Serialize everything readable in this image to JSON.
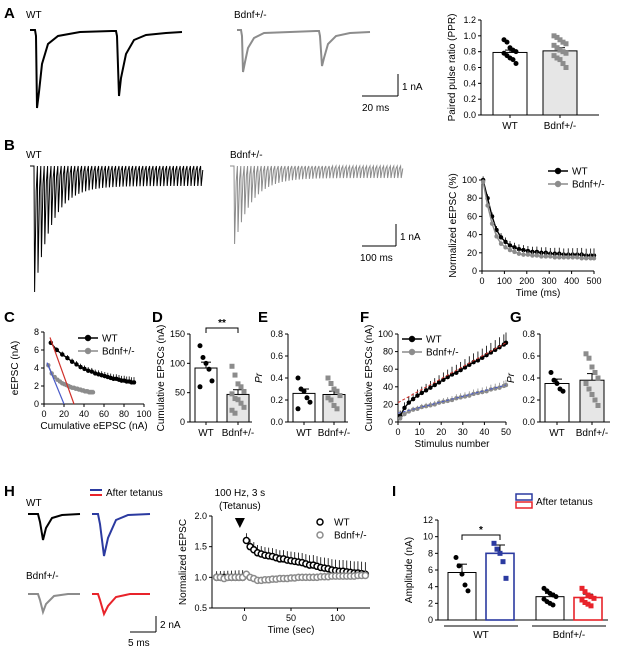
{
  "panel_labels": [
    "A",
    "B",
    "C",
    "D",
    "E",
    "F",
    "G",
    "H",
    "I"
  ],
  "trace_labels": {
    "a_wt": "WT",
    "a_het": "Bdnf+/-",
    "b_wt": "WT",
    "b_het": "Bdnf+/-",
    "h_wt": "WT",
    "h_het": "Bdnf+/-",
    "h_after": "After tetanus"
  },
  "scalebars": {
    "a_y": "1 nA",
    "a_x": "20 ms",
    "b_y": "1 nA",
    "b_x": "100 ms",
    "h_y": "2 nA",
    "h_x": "5 ms"
  },
  "colors": {
    "wt": "#000000",
    "het": "#8c8c8c",
    "het_bar": "#e6e6e6",
    "after_wt": "#2b3aa0",
    "after_het": "#e8232a",
    "fit": "#d0302a"
  },
  "chart_data": [
    {
      "id": "A_ppr",
      "type": "bar",
      "categories": [
        "WT",
        "Bdnf+/-"
      ],
      "values": [
        0.79,
        0.81
      ],
      "errors": [
        0.03,
        0.04
      ],
      "points": [
        [
          0.95,
          0.92,
          0.85,
          0.82,
          0.8,
          0.78,
          0.75,
          0.72,
          0.7,
          0.65
        ],
        [
          1.0,
          0.98,
          0.95,
          0.92,
          0.9,
          0.88,
          0.85,
          0.82,
          0.8,
          0.78,
          0.75,
          0.72,
          0.7,
          0.65,
          0.6
        ]
      ],
      "ylabel": "Paired pulse ratio (PPR)",
      "ylim": [
        0,
        1.2
      ],
      "yticks": [
        "0.0",
        "0.2",
        "0.4",
        "0.6",
        "0.8",
        "1.0",
        "1.2"
      ]
    },
    {
      "id": "B_norm",
      "type": "line",
      "series": [
        {
          "name": "WT",
          "x": [
            5,
            25,
            45,
            65,
            85,
            105,
            125,
            145,
            165,
            185,
            205,
            225,
            245,
            265,
            285,
            305,
            325,
            345,
            365,
            385,
            405,
            425,
            445,
            465,
            485,
            500
          ],
          "y": [
            100,
            80,
            60,
            45,
            37,
            32,
            28,
            26,
            24,
            23,
            22,
            21,
            21,
            20,
            20,
            19,
            19,
            19,
            18,
            18,
            18,
            18,
            18,
            17,
            17,
            17
          ]
        },
        {
          "name": "Bdnf+/-",
          "x": [
            5,
            25,
            45,
            65,
            85,
            105,
            125,
            145,
            165,
            185,
            205,
            225,
            245,
            265,
            285,
            305,
            325,
            345,
            365,
            385,
            405,
            425,
            445,
            465,
            485,
            500
          ],
          "y": [
            98,
            72,
            52,
            38,
            30,
            26,
            23,
            21,
            19,
            18,
            18,
            17,
            17,
            16,
            16,
            16,
            15,
            15,
            15,
            15,
            15,
            15,
            14,
            14,
            14,
            14
          ]
        }
      ],
      "xlabel": "Time (ms)",
      "ylabel": "Normalized eEPSC (%)",
      "xlim": [
        0,
        500
      ],
      "ylim": [
        0,
        100
      ],
      "xticks": [
        "0",
        "100",
        "200",
        "300",
        "400",
        "500"
      ],
      "yticks": [
        "0",
        "20",
        "40",
        "60",
        "80",
        "100"
      ]
    },
    {
      "id": "C_cum",
      "type": "line",
      "series": [
        {
          "name": "WT",
          "x": [
            6.8,
            12.8,
            18.3,
            23.4,
            28.1,
            32.5,
            36.6,
            40.5,
            44.2,
            47.8,
            51.2,
            54.5,
            57.7,
            60.8,
            63.8,
            66.7,
            69.5,
            72.3,
            75.0,
            77.6,
            80.2,
            82.7,
            85.2,
            87.6,
            90.0
          ],
          "y": [
            6.8,
            6.0,
            5.5,
            5.1,
            4.7,
            4.4,
            4.1,
            3.9,
            3.7,
            3.6,
            3.4,
            3.3,
            3.2,
            3.1,
            3.0,
            2.9,
            2.8,
            2.8,
            2.7,
            2.6,
            2.6,
            2.5,
            2.5,
            2.4,
            2.4
          ]
        },
        {
          "name": "Bdnf+/-",
          "x": [
            4.3,
            7.7,
            10.7,
            13.4,
            15.9,
            18.2,
            20.4,
            22.5,
            24.5,
            26.4,
            28.2,
            30.0,
            31.7,
            33.4,
            35.0,
            36.6,
            38.1,
            39.6,
            41.0,
            42.4,
            43.8,
            45.1,
            46.4,
            47.7,
            49.0
          ],
          "y": [
            4.3,
            3.4,
            3.0,
            2.7,
            2.5,
            2.3,
            2.2,
            2.1,
            2.0,
            1.9,
            1.8,
            1.8,
            1.7,
            1.7,
            1.6,
            1.6,
            1.5,
            1.5,
            1.4,
            1.4,
            1.4,
            1.3,
            1.3,
            1.3,
            1.3
          ]
        }
      ],
      "xlabel": "Cumulative eEPSC (nA)",
      "ylabel": "eEPSC (nA)",
      "xlim": [
        0,
        100
      ],
      "ylim": [
        0,
        8
      ],
      "xticks": [
        "0",
        "20",
        "40",
        "60",
        "80",
        "100"
      ],
      "yticks": [
        "0",
        "2",
        "4",
        "6",
        "8"
      ]
    },
    {
      "id": "D_cum_bar",
      "type": "bar",
      "categories": [
        "WT",
        "Bdnf+/-"
      ],
      "values": [
        92,
        47
      ],
      "errors": [
        10,
        8
      ],
      "points": [
        [
          130,
          110,
          100,
          90,
          70,
          60
        ],
        [
          95,
          80,
          65,
          60,
          52,
          48,
          40,
          38,
          32,
          25,
          20,
          15
        ]
      ],
      "ylabel": "Cumulative EPSCs (nA)",
      "ylim": [
        0,
        150
      ],
      "yticks": [
        "0",
        "50",
        "100",
        "150"
      ],
      "significance": "**"
    },
    {
      "id": "E_pr",
      "type": "bar",
      "categories": [
        "WT",
        "Bdnf+/-"
      ],
      "values": [
        0.26,
        0.25
      ],
      "errors": [
        0.04,
        0.03
      ],
      "points": [
        [
          0.4,
          0.3,
          0.28,
          0.22,
          0.18,
          0.12
        ],
        [
          0.4,
          0.35,
          0.3,
          0.28,
          0.24,
          0.22,
          0.2,
          0.15,
          0.12
        ]
      ],
      "ylabel": "Pr",
      "ylim": [
        0,
        0.8
      ],
      "yticks": [
        "0.0",
        "0.2",
        "0.4",
        "0.6",
        "0.8"
      ]
    },
    {
      "id": "F_cum",
      "type": "line",
      "series": [
        {
          "name": "WT",
          "x": [
            1,
            3,
            5,
            7,
            9,
            11,
            13,
            15,
            17,
            19,
            21,
            23,
            25,
            27,
            29,
            31,
            33,
            35,
            37,
            39,
            41,
            43,
            45,
            47,
            49,
            50
          ],
          "y": [
            7,
            16,
            22,
            26,
            30,
            33,
            36,
            39,
            42,
            45,
            48,
            51,
            54,
            56,
            59,
            62,
            65,
            68,
            70,
            73,
            76,
            79,
            82,
            85,
            88,
            90
          ]
        },
        {
          "name": "Bdnf+/-",
          "x": [
            1,
            3,
            5,
            7,
            9,
            11,
            13,
            15,
            17,
            19,
            21,
            23,
            25,
            27,
            29,
            31,
            33,
            35,
            37,
            39,
            41,
            43,
            45,
            47,
            49,
            50
          ],
          "y": [
            4,
            9,
            12,
            14,
            15,
            17,
            18,
            19,
            20,
            22,
            23,
            24,
            25,
            27,
            28,
            29,
            30,
            32,
            33,
            34,
            35,
            37,
            38,
            39,
            41,
            42
          ]
        }
      ],
      "xlabel": "Stimulus number",
      "ylabel": "Cumulative EPSCs (nA)",
      "xlim": [
        0,
        50
      ],
      "ylim": [
        0,
        100
      ],
      "xticks": [
        "0",
        "10",
        "20",
        "30",
        "40",
        "50"
      ],
      "yticks": [
        "0",
        "20",
        "40",
        "60",
        "80",
        "100"
      ]
    },
    {
      "id": "G_pr",
      "type": "bar",
      "categories": [
        "WT",
        "Bdnf+/-"
      ],
      "values": [
        0.35,
        0.38
      ],
      "errors": [
        0.04,
        0.06
      ],
      "points": [
        [
          0.45,
          0.38,
          0.35,
          0.3,
          0.28
        ],
        [
          0.62,
          0.58,
          0.5,
          0.45,
          0.4,
          0.35,
          0.3,
          0.25,
          0.2,
          0.15
        ]
      ],
      "ylabel": "Pr",
      "ylim": [
        0,
        0.8
      ],
      "yticks": [
        "0.0",
        "0.2",
        "0.4",
        "0.6",
        "0.8"
      ]
    },
    {
      "id": "H_ltp",
      "type": "scatter",
      "series": [
        {
          "name": "WT",
          "x": [
            -30,
            -26,
            -22,
            -18,
            -14,
            -10,
            -6,
            -2,
            2,
            6,
            10,
            14,
            18,
            22,
            26,
            30,
            34,
            38,
            42,
            46,
            50,
            54,
            58,
            62,
            66,
            70,
            74,
            78,
            82,
            86,
            90,
            94,
            98,
            102,
            106,
            110,
            114,
            118,
            122,
            126,
            130
          ],
          "y": [
            1.0,
            1.0,
            1.0,
            1.0,
            1.0,
            1.0,
            1.0,
            1.0,
            1.6,
            1.5,
            1.45,
            1.4,
            1.38,
            1.36,
            1.35,
            1.34,
            1.32,
            1.3,
            1.3,
            1.28,
            1.27,
            1.26,
            1.25,
            1.24,
            1.22,
            1.2,
            1.2,
            1.18,
            1.16,
            1.15,
            1.14,
            1.12,
            1.11,
            1.1,
            1.1,
            1.09,
            1.08,
            1.07,
            1.07,
            1.06,
            1.05
          ]
        },
        {
          "name": "Bdnf+/-",
          "x": [
            -30,
            -26,
            -22,
            -18,
            -14,
            -10,
            -6,
            -2,
            2,
            6,
            10,
            14,
            18,
            22,
            26,
            30,
            34,
            38,
            42,
            46,
            50,
            54,
            58,
            62,
            66,
            70,
            74,
            78,
            82,
            86,
            90,
            94,
            98,
            102,
            106,
            110,
            114,
            118,
            122,
            126,
            130
          ],
          "y": [
            1.0,
            1.0,
            0.98,
            1.0,
            1.0,
            1.0,
            1.0,
            1.0,
            1.05,
            1.0,
            0.98,
            0.95,
            0.95,
            0.96,
            0.96,
            0.97,
            0.97,
            0.98,
            0.98,
            0.98,
            0.99,
            0.99,
            1.0,
            1.0,
            1.0,
            1.0,
            1.0,
            1.0,
            1.01,
            1.01,
            1.01,
            1.02,
            1.02,
            1.02,
            1.02,
            1.02,
            1.02,
            1.02,
            1.03,
            1.03,
            1.03
          ]
        }
      ],
      "xlabel": "Time (sec)",
      "ylabel": "Normalized eEPSC",
      "xlim": [
        -35,
        135
      ],
      "ylim": [
        0.5,
        2.0
      ],
      "xticks": [
        "0",
        "50",
        "100"
      ],
      "yticks": [
        "0.5",
        "1.0",
        "1.5",
        "2.0"
      ],
      "annotation": [
        "100 Hz, 3 s",
        "(Tetanus)"
      ]
    },
    {
      "id": "I_amp",
      "type": "bar",
      "categories": [
        "WT",
        "Bdnf+/-"
      ],
      "series": [
        {
          "name": "",
          "values": [
            5.7,
            2.8
          ],
          "errors": [
            1.0,
            0.4
          ]
        },
        {
          "name": "After tetanus",
          "values": [
            8.0,
            2.7
          ],
          "errors": [
            1.0,
            0.4
          ]
        }
      ],
      "points": [
        [
          [
            7.5,
            6.5,
            5.5,
            4.2,
            3.5
          ],
          [
            3.8,
            3.5,
            3.2,
            3.0,
            2.8,
            2.5,
            2.2,
            2.0,
            1.8
          ]
        ],
        [
          [
            9.2,
            8.5,
            8.0,
            7.0,
            5.0
          ],
          [
            3.8,
            3.4,
            3.0,
            2.8,
            2.6,
            2.4,
            2.1,
            1.9,
            1.7
          ]
        ]
      ],
      "ylabel": "Amplitude (nA)",
      "ylim": [
        0,
        12
      ],
      "yticks": [
        "0",
        "2",
        "4",
        "6",
        "8",
        "10",
        "12"
      ],
      "significance": "*"
    }
  ]
}
